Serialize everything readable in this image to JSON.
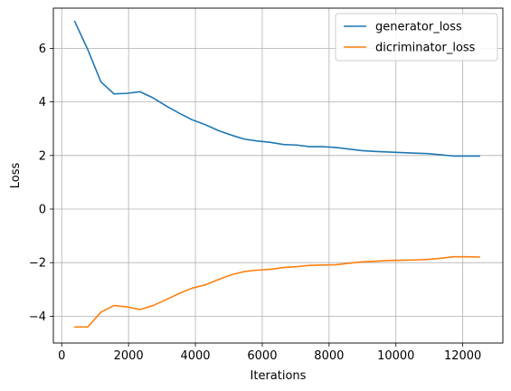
{
  "chart_data": {
    "type": "line",
    "title": "",
    "xlabel": "Iterations",
    "ylabel": "Loss",
    "xlim": [
      -250,
      13200
    ],
    "ylim": [
      -5,
      7.5
    ],
    "xticks": [
      0,
      2000,
      4000,
      6000,
      8000,
      10000,
      12000
    ],
    "yticks": [
      -4,
      -2,
      0,
      2,
      4,
      6
    ],
    "grid": true,
    "legend_position": "top-right",
    "series": [
      {
        "name": "generator_loss",
        "color": "#1f77b4",
        "x": [
          391,
          781,
          1172,
          1563,
          1953,
          2344,
          2734,
          3125,
          3516,
          3906,
          4297,
          4688,
          5078,
          5469,
          5859,
          6250,
          6641,
          7031,
          7422,
          7813,
          8203,
          8594,
          8984,
          9375,
          9766,
          10156,
          10547,
          10938,
          11328,
          11719,
          12109,
          12500
        ],
        "y": [
          7.0,
          5.95,
          4.75,
          4.3,
          4.32,
          4.38,
          4.15,
          3.85,
          3.58,
          3.33,
          3.15,
          2.93,
          2.76,
          2.61,
          2.54,
          2.49,
          2.41,
          2.39,
          2.33,
          2.33,
          2.3,
          2.24,
          2.18,
          2.15,
          2.13,
          2.11,
          2.09,
          2.07,
          2.03,
          1.98,
          1.98,
          1.98
        ]
      },
      {
        "name": "dicriminator_loss",
        "color": "#ff7f0e",
        "x": [
          391,
          781,
          1172,
          1563,
          1953,
          2344,
          2734,
          3125,
          3516,
          3906,
          4297,
          4688,
          5078,
          5469,
          5859,
          6250,
          6641,
          7031,
          7422,
          7813,
          8203,
          8594,
          8984,
          9375,
          9766,
          10156,
          10547,
          10938,
          11328,
          11719,
          12109,
          12500
        ],
        "y": [
          -4.4,
          -4.4,
          -3.85,
          -3.6,
          -3.65,
          -3.75,
          -3.6,
          -3.38,
          -3.15,
          -2.95,
          -2.83,
          -2.63,
          -2.45,
          -2.33,
          -2.28,
          -2.25,
          -2.18,
          -2.15,
          -2.1,
          -2.09,
          -2.08,
          -2.02,
          -1.97,
          -1.95,
          -1.92,
          -1.91,
          -1.9,
          -1.88,
          -1.84,
          -1.78,
          -1.78,
          -1.79
        ]
      }
    ]
  }
}
